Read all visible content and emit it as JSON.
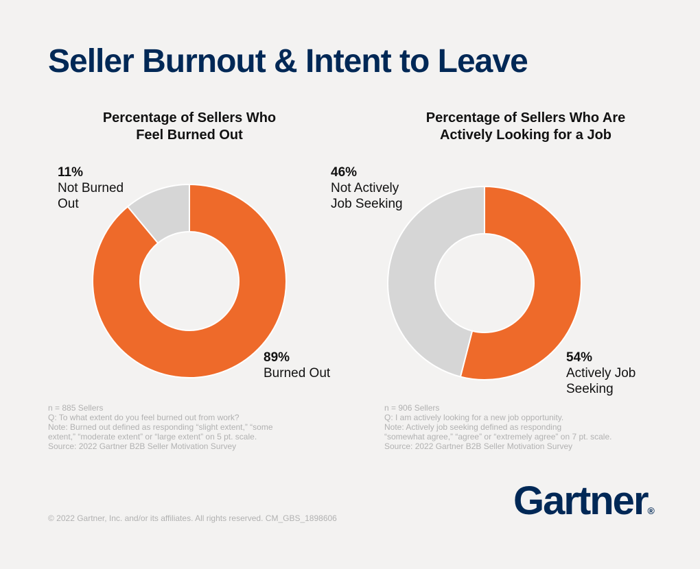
{
  "title": "Seller Burnout & Intent to Leave",
  "colors": {
    "orange": "#ee6a2a",
    "gray": "#d6d6d6",
    "navy": "#002856"
  },
  "chart_data": [
    {
      "type": "pie",
      "title_lines": [
        "Percentage of Sellers Who",
        "Feel Burned Out"
      ],
      "slices": [
        {
          "pct_label": "89%",
          "name_lines": [
            "Burned Out"
          ],
          "value": 89,
          "color": "#ee6a2a"
        },
        {
          "pct_label": "11%",
          "name_lines": [
            "Not Burned",
            "Out"
          ],
          "value": 11,
          "color": "#d6d6d6"
        }
      ],
      "footnotes": [
        "n = 885 Sellers",
        "Q: To what extent do you feel burned out from work?",
        "Note: Burned out defined as responding “slight extent,” “some",
        "extent,” “moderate extent” or “large extent” on 5 pt. scale.",
        "Source: 2022 Gartner B2B Seller Motivation Survey"
      ]
    },
    {
      "type": "pie",
      "title_lines": [
        "Percentage of Sellers Who Are",
        "Actively Looking for a Job"
      ],
      "slices": [
        {
          "pct_label": "54%",
          "name_lines": [
            "Actively Job",
            "Seeking"
          ],
          "value": 54,
          "color": "#ee6a2a"
        },
        {
          "pct_label": "46%",
          "name_lines": [
            "Not Actively",
            "Job Seeking"
          ],
          "value": 46,
          "color": "#d6d6d6"
        }
      ],
      "footnotes": [
        "n = 906 Sellers",
        "Q: I am actively looking for a new job opportunity.",
        "Note: Actively job seeking defined as responding",
        "“somewhat agree,” “agree” or “extremely agree” on 7 pt. scale.",
        "Source: 2022 Gartner B2B Seller Motivation Survey"
      ]
    }
  ],
  "copyright": "© 2022 Gartner, Inc. and/or its affiliates. All rights reserved. CM_GBS_1898606",
  "logo": {
    "text": "Gartner",
    "mark": "®"
  }
}
